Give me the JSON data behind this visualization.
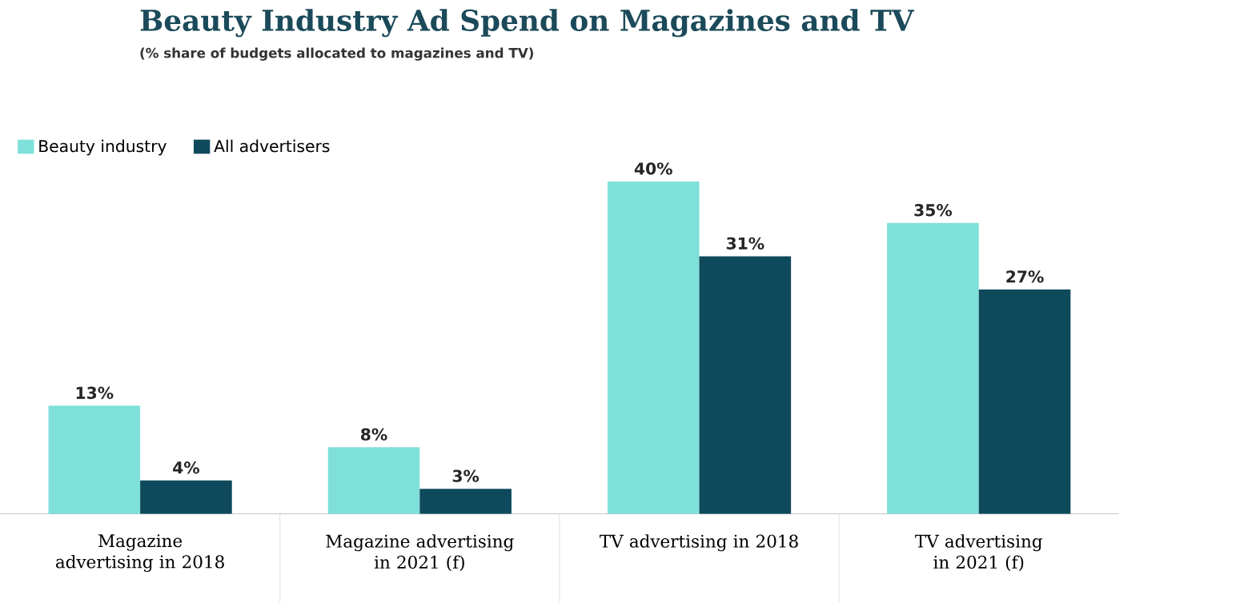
{
  "chart_data": {
    "type": "bar",
    "title": "Beauty Industry Ad Spend on Magazines and TV",
    "subtitle": "(% share of budgets allocated to magazines and TV)",
    "categories": [
      "Magazine advertising in 2018",
      "Magazine advertising in 2021 (f)",
      "TV advertising in 2018",
      "TV advertising in 2021 (f)"
    ],
    "series": [
      {
        "name": "Beauty industry",
        "color": "#7fe0da",
        "values": [
          13,
          8,
          40,
          35
        ],
        "value_labels": [
          "13%",
          "8%",
          "40%",
          "35%"
        ]
      },
      {
        "name": "All advertisers",
        "color": "#0f4a5c",
        "values": [
          4,
          3,
          31,
          27
        ],
        "value_labels": [
          "4%",
          "3%",
          "31%",
          "27%"
        ]
      }
    ],
    "legend": "top left"
  }
}
